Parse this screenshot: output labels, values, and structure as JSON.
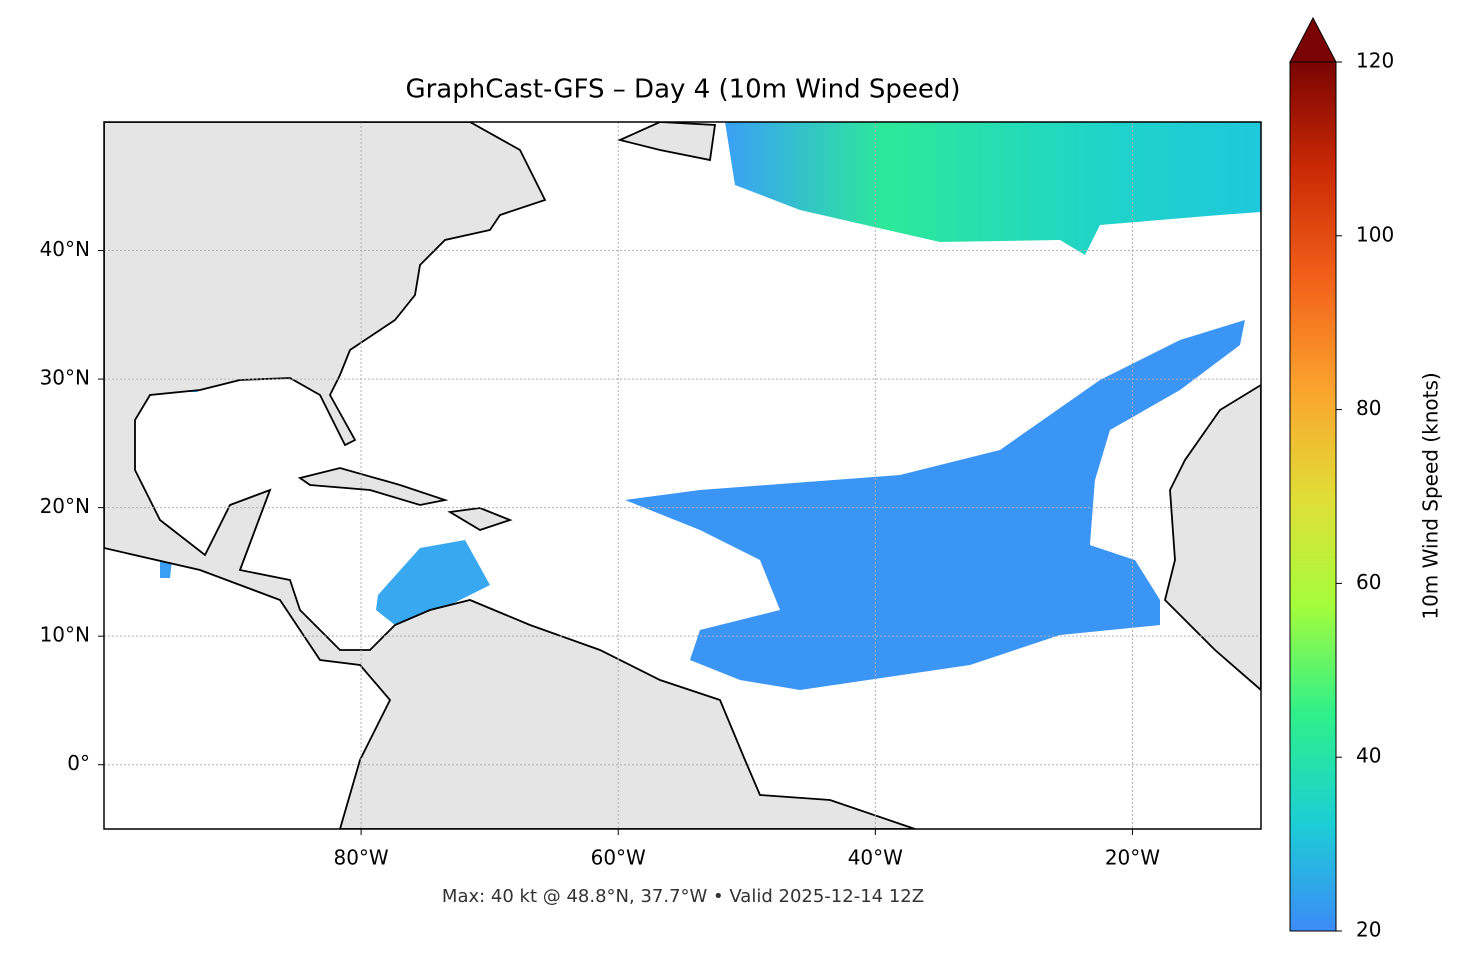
{
  "chart_data": {
    "type": "map",
    "title": "GraphCast-GFS – Day 4 (10m Wind Speed)",
    "note": "Max: 40 kt @ 48.8°N, 37.7°W • Valid 2025-12-14 12Z",
    "xlim": [
      -100,
      -10
    ],
    "ylim": [
      -5,
      50
    ],
    "xticks": [
      {
        "value": -80,
        "label": "80°W"
      },
      {
        "value": -60,
        "label": "60°W"
      },
      {
        "value": -40,
        "label": "40°W"
      },
      {
        "value": -20,
        "label": "20°W"
      }
    ],
    "yticks": [
      {
        "value": 0,
        "label": "0°"
      },
      {
        "value": 10,
        "label": "10°N"
      },
      {
        "value": 20,
        "label": "20°N"
      },
      {
        "value": 30,
        "label": "30°N"
      },
      {
        "value": 40,
        "label": "40°N"
      }
    ],
    "grid": true,
    "colorbar": {
      "label": "10m Wind Speed (knots)",
      "lim": [
        20,
        120
      ],
      "ticks": [
        20,
        40,
        60,
        80,
        100,
        120
      ],
      "extend": "max",
      "colors": [
        "#3d8af7",
        "#1bcfd4",
        "#2ff08a",
        "#a4fc3b",
        "#e1dd37",
        "#fba32e",
        "#f2611a",
        "#cb2a04",
        "#7a0403"
      ]
    }
  }
}
